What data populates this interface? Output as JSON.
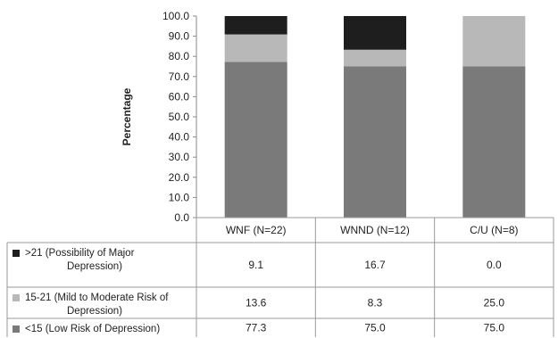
{
  "chart_data": {
    "type": "bar",
    "stacked": true,
    "title": "",
    "xlabel": "",
    "ylabel": "Percentage",
    "ylim": [
      0,
      100
    ],
    "yticks": [
      "0.0",
      "10.0",
      "20.0",
      "30.0",
      "40.0",
      "50.0",
      "60.0",
      "70.0",
      "80.0",
      "90.0",
      "100.0"
    ],
    "grid": false,
    "legend": "data-table-left",
    "categories": [
      "WNF (N=22)",
      "WNND (N=12)",
      "C/U (N=8)"
    ],
    "series": [
      {
        "name": "<15 (Low Risk of Depression)",
        "name_lines": [
          "<15 (Low Risk of Depression)"
        ],
        "color": "#7a7a7a",
        "values": [
          77.3,
          75.0,
          75.0
        ],
        "labels": [
          "77.3",
          "75.0",
          "75.0"
        ]
      },
      {
        "name": "15-21 (Mild to Moderate Risk of Depression)",
        "name_lines": [
          "15-21 (Mild to Moderate Risk of",
          "Depression)"
        ],
        "color": "#b8b8b8",
        "values": [
          13.6,
          8.3,
          25.0
        ],
        "labels": [
          "13.6",
          "8.3",
          "25.0"
        ]
      },
      {
        "name": ">21 (Possibility of Major Depression)",
        "name_lines": [
          ">21 (Possibility of Major",
          "Depression)"
        ],
        "color": "#1e1e1e",
        "values": [
          9.1,
          16.7,
          0.0
        ],
        "labels": [
          "9.1",
          "16.7",
          "0.0"
        ]
      }
    ],
    "table_row_order": [
      2,
      1,
      0
    ]
  }
}
